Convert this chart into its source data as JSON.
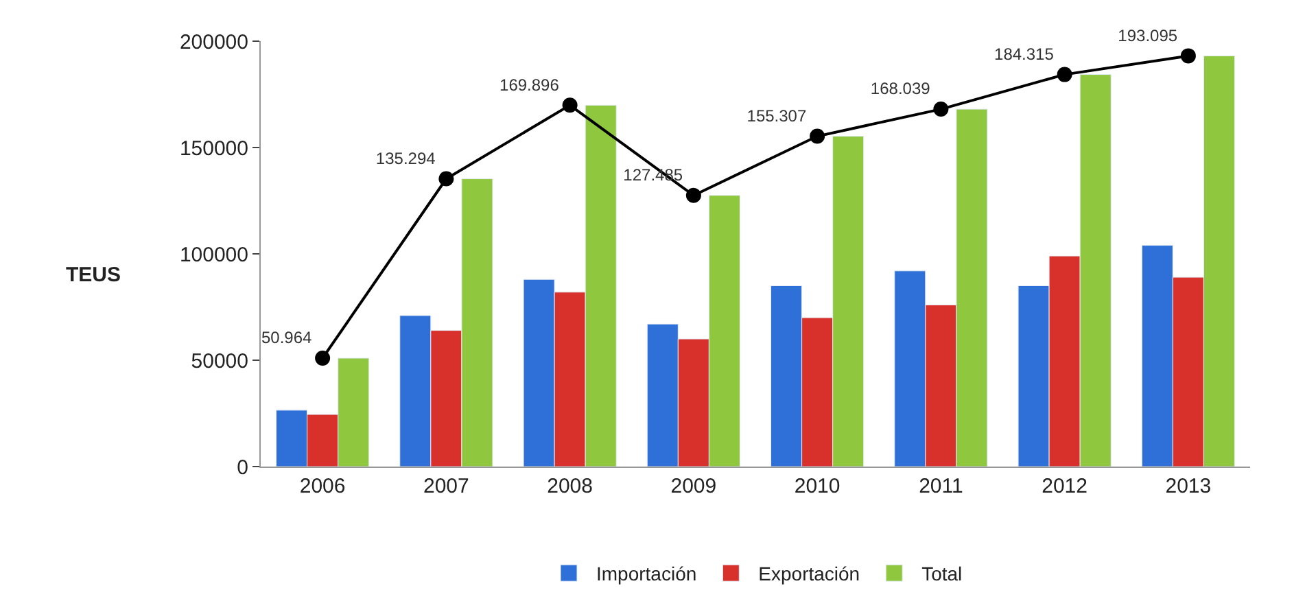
{
  "chart_data": {
    "type": "bar",
    "ylabel": "TEUS",
    "categories": [
      "2006",
      "2007",
      "2008",
      "2009",
      "2010",
      "2011",
      "2012",
      "2013"
    ],
    "series": [
      {
        "name": "Importación",
        "color": "#2e6fd8",
        "values": [
          26500,
          71000,
          88000,
          67000,
          85000,
          92000,
          85000,
          104000
        ]
      },
      {
        "name": "Exportación",
        "color": "#d8302a",
        "values": [
          24500,
          64000,
          82000,
          60000,
          70000,
          76000,
          99000,
          89000
        ]
      },
      {
        "name": "Total",
        "color": "#8fc73e",
        "values": [
          50964,
          135294,
          169896,
          127485,
          155307,
          168039,
          184315,
          193095
        ]
      },
      {
        "type": "line",
        "color": "#000000",
        "marker": "circle",
        "values": [
          50964,
          135294,
          169896,
          127485,
          155307,
          168039,
          184315,
          193095
        ],
        "value_labels": [
          "50.964",
          "135.294",
          "169.896",
          "127.485",
          "155.307",
          "168.039",
          "184.315",
          "193.095"
        ]
      }
    ],
    "ylim": [
      0,
      200000
    ],
    "yticks": [
      0,
      50000,
      100000,
      150000,
      200000
    ],
    "legend": "bottom"
  }
}
